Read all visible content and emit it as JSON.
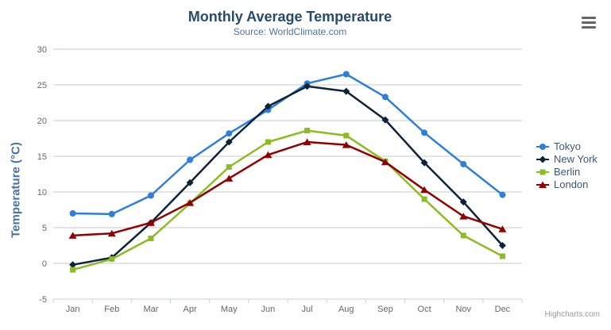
{
  "header": {
    "title": "Monthly Average Temperature",
    "subtitle": "Source: WorldClimate.com"
  },
  "credits": {
    "label": "Highcharts.com"
  },
  "export_menu": {
    "icon": "hamburger-icon"
  },
  "colors": {
    "title": "#274b6d",
    "subtitle": "#4d759e",
    "axis_title": "#4572a7",
    "axis_labels": "#666666",
    "grid": "#c8c8c8",
    "axis_line": "#c0d0e0",
    "legend_text": "#3e576f",
    "credits": "#999999",
    "burger": "#666666",
    "background": "#ffffff"
  },
  "chart_data": {
    "type": "line",
    "title": "Monthly Average Temperature",
    "subtitle": "Source: WorldClimate.com",
    "categories": [
      "Jan",
      "Feb",
      "Mar",
      "Apr",
      "May",
      "Jun",
      "Jul",
      "Aug",
      "Sep",
      "Oct",
      "Nov",
      "Dec"
    ],
    "series": [
      {
        "name": "Tokyo",
        "color": "#2f7ed8",
        "marker": "circle",
        "values": [
          7.0,
          6.9,
          9.5,
          14.5,
          18.2,
          21.5,
          25.2,
          26.5,
          23.3,
          18.3,
          13.9,
          9.6
        ]
      },
      {
        "name": "New York",
        "color": "#0d233a",
        "marker": "diamond",
        "values": [
          -0.2,
          0.8,
          5.7,
          11.3,
          17.0,
          22.0,
          24.8,
          24.1,
          20.1,
          14.1,
          8.6,
          2.5
        ]
      },
      {
        "name": "Berlin",
        "color": "#8bbc21",
        "marker": "square",
        "values": [
          -0.9,
          0.6,
          3.5,
          8.4,
          13.5,
          17.0,
          18.6,
          17.9,
          14.3,
          9.0,
          3.9,
          1.0
        ]
      },
      {
        "name": "London",
        "color": "#910000",
        "marker": "triangle",
        "values": [
          3.9,
          4.2,
          5.7,
          8.5,
          11.9,
          15.2,
          17.0,
          16.6,
          14.2,
          10.3,
          6.6,
          4.8
        ]
      }
    ],
    "xlabel": "",
    "ylabel": "Temperature (°C)",
    "ylim": [
      -5,
      30
    ],
    "ytick": 5,
    "grid": true,
    "legend_position": "right"
  }
}
